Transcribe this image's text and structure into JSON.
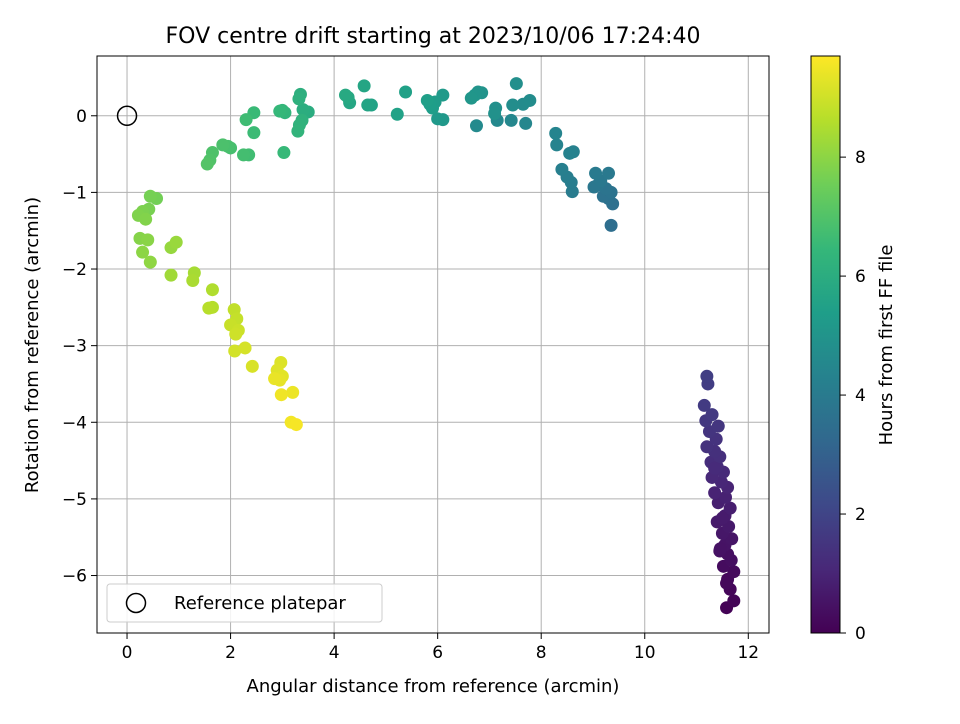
{
  "chart_data": {
    "type": "scatter",
    "title": "FOV centre drift starting at 2023/10/06 17:24:40",
    "xlabel": "Angular distance from reference (arcmin)",
    "ylabel": "Rotation from reference (arcmin)",
    "xlim": [
      -0.58,
      12.4
    ],
    "ylim": [
      -6.75,
      0.78
    ],
    "x_ticks": [
      0,
      2,
      4,
      6,
      8,
      10,
      12
    ],
    "y_ticks": [
      0,
      -1,
      -2,
      -3,
      -4,
      -5,
      -6
    ],
    "grid": true,
    "legend": {
      "placement": "lower-left",
      "entries": [
        "Reference platepar"
      ]
    },
    "colorbar": {
      "label": "Hours from first FF file",
      "range": [
        0,
        9.7
      ],
      "ticks": [
        0,
        2,
        4,
        6,
        8
      ],
      "colormap": "viridis"
    },
    "reference_point": {
      "name": "Reference platepar",
      "x": 0,
      "y": 0
    },
    "series": [
      {
        "points": [
          [
            11.58,
            -6.42
          ],
          [
            11.72,
            -6.33
          ],
          [
            11.65,
            -6.18
          ],
          [
            11.6,
            -6.05
          ],
          [
            11.72,
            -5.95
          ],
          [
            11.52,
            -5.88
          ],
          [
            11.67,
            -5.8
          ],
          [
            11.6,
            -5.72
          ],
          [
            11.45,
            -5.68
          ],
          [
            11.55,
            -5.6
          ],
          [
            11.68,
            -5.52
          ],
          [
            11.5,
            -5.45
          ],
          [
            11.62,
            -5.36
          ],
          [
            11.4,
            -5.3
          ],
          [
            11.55,
            -5.22
          ],
          [
            11.65,
            -5.12
          ],
          [
            11.42,
            -5.05
          ],
          [
            11.56,
            -4.98
          ],
          [
            11.35,
            -4.92
          ],
          [
            11.6,
            -4.85
          ],
          [
            11.48,
            -4.78
          ],
          [
            11.3,
            -4.72
          ],
          [
            11.52,
            -4.65
          ],
          [
            11.4,
            -4.58
          ],
          [
            11.28,
            -4.52
          ],
          [
            11.45,
            -4.45
          ],
          [
            11.35,
            -4.38
          ],
          [
            11.2,
            -4.32
          ],
          [
            11.38,
            -4.22
          ],
          [
            11.25,
            -4.12
          ],
          [
            11.42,
            -4.05
          ],
          [
            11.18,
            -3.98
          ],
          [
            11.3,
            -3.9
          ],
          [
            11.15,
            -3.78
          ],
          [
            11.22,
            -3.5
          ],
          [
            11.2,
            -3.4
          ],
          [
            11.58,
            -6.1
          ],
          [
            11.5,
            -5.25
          ],
          [
            11.35,
            -4.6
          ],
          [
            11.46,
            -5.65
          ]
        ],
        "hours": [
          0.05,
          0.1,
          0.15,
          0.2,
          0.25,
          0.3,
          0.35,
          0.4,
          0.45,
          0.5,
          0.55,
          0.6,
          0.65,
          0.7,
          0.75,
          0.8,
          0.85,
          0.9,
          0.95,
          1.0,
          1.05,
          1.1,
          1.15,
          1.2,
          1.25,
          1.3,
          1.35,
          1.4,
          1.45,
          1.5,
          1.55,
          1.6,
          1.65,
          1.7,
          1.75,
          1.8,
          0.22,
          0.72,
          1.18,
          0.48
        ]
      },
      {
        "points": [
          [
            9.35,
            -1.43
          ],
          [
            9.38,
            -1.15
          ],
          [
            9.3,
            -1.08
          ],
          [
            9.2,
            -1.05
          ],
          [
            9.35,
            -1.0
          ],
          [
            9.25,
            -0.95
          ],
          [
            9.1,
            -0.9
          ],
          [
            9.02,
            -0.93
          ],
          [
            9.15,
            -0.85
          ],
          [
            9.3,
            -0.75
          ],
          [
            9.05,
            -0.75
          ],
          [
            8.6,
            -0.99
          ],
          [
            8.58,
            -0.87
          ],
          [
            8.5,
            -0.8
          ],
          [
            8.4,
            -0.7
          ],
          [
            8.62,
            -0.47
          ],
          [
            8.55,
            -0.49
          ],
          [
            8.3,
            -0.38
          ],
          [
            8.28,
            -0.23
          ],
          [
            7.7,
            -0.1
          ],
          [
            7.42,
            -0.06
          ],
          [
            7.15,
            -0.06
          ],
          [
            6.75,
            -0.13
          ],
          [
            7.65,
            0.15
          ],
          [
            7.78,
            0.2
          ],
          [
            7.45,
            0.14
          ],
          [
            7.52,
            0.42
          ],
          [
            7.12,
            0.1
          ],
          [
            7.1,
            0.03
          ],
          [
            6.85,
            0.3
          ],
          [
            6.78,
            0.31
          ],
          [
            6.72,
            0.27
          ],
          [
            6.65,
            0.23
          ],
          [
            6.1,
            -0.05
          ],
          [
            6.0,
            -0.04
          ],
          [
            6.1,
            0.27
          ],
          [
            5.95,
            0.18
          ],
          [
            5.9,
            0.1
          ],
          [
            5.85,
            0.15
          ],
          [
            5.8,
            0.2
          ],
          [
            5.38,
            0.31
          ],
          [
            5.22,
            0.02
          ],
          [
            4.72,
            0.14
          ],
          [
            4.65,
            0.14
          ],
          [
            4.58,
            0.39
          ],
          [
            4.3,
            0.17
          ],
          [
            4.27,
            0.24
          ],
          [
            4.22,
            0.27
          ]
        ],
        "hours": [
          3.5,
          3.55,
          3.6,
          3.65,
          3.7,
          3.75,
          3.8,
          3.85,
          3.9,
          3.95,
          4.0,
          4.05,
          4.1,
          4.15,
          4.2,
          4.25,
          4.3,
          4.35,
          4.4,
          4.45,
          4.5,
          4.55,
          4.6,
          4.65,
          4.7,
          4.75,
          4.8,
          4.85,
          4.9,
          4.95,
          5.0,
          5.05,
          5.1,
          5.15,
          5.2,
          5.25,
          5.3,
          5.35,
          5.4,
          5.45,
          5.5,
          5.55,
          5.6,
          5.65,
          5.7,
          5.75,
          5.8,
          5.85
        ]
      },
      {
        "points": [
          [
            3.5,
            0.05
          ],
          [
            3.4,
            0.08
          ],
          [
            3.35,
            0.28
          ],
          [
            3.32,
            0.22
          ],
          [
            3.38,
            -0.06
          ],
          [
            3.33,
            -0.12
          ],
          [
            3.3,
            -0.2
          ],
          [
            3.05,
            0.04
          ],
          [
            3.0,
            0.07
          ],
          [
            2.95,
            0.06
          ],
          [
            3.03,
            -0.48
          ],
          [
            2.45,
            0.04
          ],
          [
            2.45,
            -0.22
          ],
          [
            2.3,
            -0.05
          ],
          [
            2.35,
            -0.51
          ],
          [
            2.25,
            -0.51
          ],
          [
            2.0,
            -0.42
          ],
          [
            1.95,
            -0.4
          ],
          [
            1.85,
            -0.38
          ],
          [
            1.65,
            -0.48
          ],
          [
            1.6,
            -0.58
          ],
          [
            1.55,
            -0.63
          ],
          [
            0.57,
            -1.08
          ],
          [
            0.45,
            -1.05
          ],
          [
            0.42,
            -1.22
          ],
          [
            0.3,
            -1.25
          ],
          [
            0.22,
            -1.3
          ],
          [
            0.36,
            -1.35
          ],
          [
            0.25,
            -1.6
          ],
          [
            0.4,
            -1.62
          ],
          [
            0.3,
            -1.78
          ],
          [
            0.45,
            -1.91
          ],
          [
            0.85,
            -1.72
          ],
          [
            0.95,
            -1.65
          ],
          [
            0.85,
            -2.08
          ],
          [
            1.3,
            -2.05
          ],
          [
            1.27,
            -2.15
          ],
          [
            1.65,
            -2.27
          ],
          [
            1.65,
            -2.5
          ],
          [
            1.58,
            -2.51
          ]
        ],
        "hours": [
          6.0,
          6.05,
          6.1,
          6.15,
          6.2,
          6.25,
          6.3,
          6.35,
          6.4,
          6.45,
          6.5,
          6.55,
          6.6,
          6.65,
          6.7,
          6.75,
          6.8,
          6.85,
          6.9,
          6.95,
          7.0,
          7.05,
          7.6,
          7.65,
          7.7,
          7.75,
          7.8,
          7.85,
          7.9,
          7.95,
          8.0,
          8.05,
          8.15,
          8.2,
          8.3,
          8.4,
          8.45,
          8.55,
          8.6,
          8.65
        ]
      },
      {
        "points": [
          [
            2.07,
            -2.53
          ],
          [
            2.12,
            -2.65
          ],
          [
            2.0,
            -2.73
          ],
          [
            2.15,
            -2.8
          ],
          [
            2.1,
            -2.85
          ],
          [
            2.08,
            -3.07
          ],
          [
            2.28,
            -3.03
          ],
          [
            2.42,
            -3.27
          ],
          [
            2.97,
            -3.22
          ],
          [
            2.9,
            -3.32
          ],
          [
            3.0,
            -3.4
          ],
          [
            2.95,
            -3.45
          ],
          [
            2.85,
            -3.43
          ],
          [
            3.2,
            -3.61
          ],
          [
            2.98,
            -3.64
          ],
          [
            3.17,
            -4.0
          ],
          [
            3.27,
            -4.03
          ]
        ],
        "hours": [
          8.8,
          8.85,
          8.9,
          8.95,
          9.0,
          9.05,
          9.1,
          9.15,
          9.2,
          9.25,
          9.3,
          9.35,
          9.4,
          9.45,
          9.5,
          9.55,
          9.6
        ]
      }
    ]
  }
}
